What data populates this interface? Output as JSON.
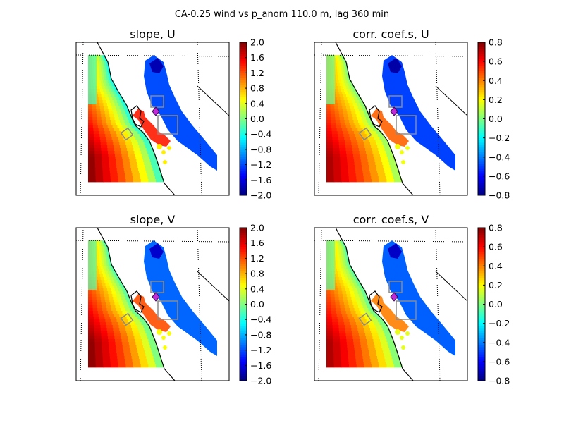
{
  "suptitle": "CA-0.25 wind vs p_anom 110.0 m, lag 360 min",
  "chart_data": [
    {
      "type": "heatmap",
      "title": "slope, U",
      "colormap": "jet",
      "clim": [
        -2.0,
        2.0
      ],
      "colorbar_ticks": [
        "2.0",
        "1.6",
        "1.2",
        "0.8",
        "0.4",
        "0.0",
        "−0.4",
        "−0.8",
        "−1.2",
        "−1.6",
        "−2.0"
      ],
      "field": {
        "ocean_offshore": 2.0,
        "ocean_coast_min": -0.5,
        "inland_valley": -1.2,
        "bay_area_peak": 1.4
      }
    },
    {
      "type": "heatmap",
      "title": "corr. coef.s, U",
      "colormap": "jet",
      "clim": [
        -0.8,
        0.8
      ],
      "colorbar_ticks": [
        "0.8",
        "0.6",
        "0.4",
        "0.2",
        "0.0",
        "−0.2",
        "−0.4",
        "−0.6",
        "−0.8"
      ],
      "field": {
        "ocean_offshore": 0.75,
        "ocean_coast_min": -0.05,
        "inland_valley": -0.5,
        "bay_area_peak": 0.45
      }
    },
    {
      "type": "heatmap",
      "title": "slope, V",
      "colormap": "jet",
      "clim": [
        -2.0,
        2.0
      ],
      "colorbar_ticks": [
        "2.0",
        "1.6",
        "1.2",
        "0.8",
        "0.4",
        "0.0",
        "−0.4",
        "−0.8",
        "−1.2",
        "−1.6",
        "−2.0"
      ],
      "field": {
        "ocean_offshore": 2.0,
        "ocean_coast_min": -0.3,
        "inland_valley": -1.1,
        "bay_area_peak": 1.2
      }
    },
    {
      "type": "heatmap",
      "title": "corr. coef.s, V",
      "colormap": "jet",
      "clim": [
        -0.8,
        0.8
      ],
      "colorbar_ticks": [
        "0.8",
        "0.6",
        "0.4",
        "0.2",
        "0.0",
        "−0.2",
        "−0.4",
        "−0.6",
        "−0.8"
      ],
      "field": {
        "ocean_offshore": 0.75,
        "ocean_coast_min": -0.1,
        "inland_valley": -0.45,
        "bay_area_peak": 0.4
      }
    }
  ]
}
